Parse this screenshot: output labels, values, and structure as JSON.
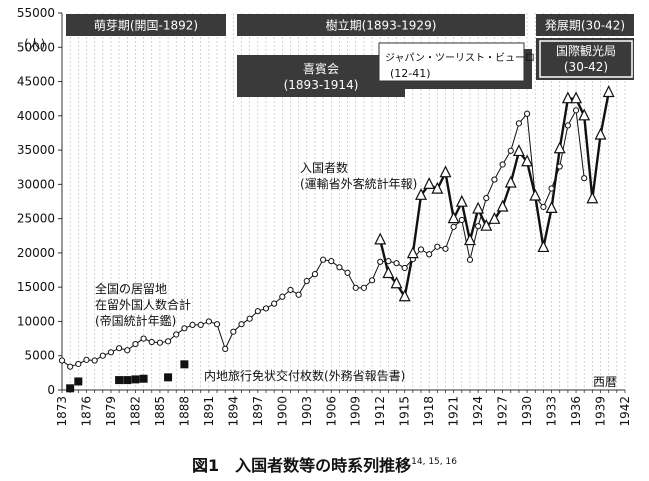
{
  "chart_data": {
    "type": "line",
    "title": "",
    "ylim": [
      0,
      55000
    ],
    "yticks": [
      0,
      5000,
      10000,
      15000,
      20000,
      25000,
      30000,
      35000,
      40000,
      45000,
      50000,
      55000
    ],
    "y_unit": "(人)",
    "xlim": [
      1873,
      1942
    ],
    "xtick_values": [
      1873,
      1876,
      1879,
      1882,
      1885,
      1888,
      1891,
      1894,
      1897,
      1900,
      1903,
      1906,
      1909,
      1912,
      1915,
      1918,
      1921,
      1924,
      1927,
      1930,
      1933,
      1936,
      1939,
      1942
    ],
    "xlabel": "西暦",
    "grid": "vertical dashed",
    "periods": [
      {
        "label": "萌芽期(開国-1892)"
      },
      {
        "label": "樹立期(1893-1929)"
      },
      {
        "label": "発展期(30-42)"
      },
      {
        "label": "喜賓会",
        "sub": "(1893-1914)"
      },
      {
        "label": "ジャパン・ツーリスト・ビューロー",
        "sub": "(12-41)"
      },
      {
        "label": "国際観光局",
        "sub": "(30-42)"
      }
    ],
    "series": [
      {
        "name": "全国の居留地 在留外国人数合計 (帝国統計年鑑)",
        "label_lines": [
          "全国の居留地",
          "在留外国人数合計",
          "(帝国統計年鑑)"
        ],
        "marker": "circle",
        "x": [
          1873,
          1874,
          1875,
          1876,
          1877,
          1878,
          1879,
          1880,
          1881,
          1882,
          1883,
          1884,
          1885,
          1886,
          1887,
          1888,
          1889,
          1890,
          1891,
          1892,
          1893,
          1894,
          1895,
          1896,
          1897,
          1898,
          1899,
          1900,
          1901,
          1902,
          1903,
          1904,
          1905,
          1906,
          1907,
          1908,
          1909,
          1910,
          1911,
          1912,
          1913,
          1914,
          1915,
          1916,
          1917,
          1918,
          1919,
          1920,
          1921,
          1922,
          1923,
          1924,
          1925,
          1926,
          1927,
          1928,
          1929,
          1930,
          1931,
          1932,
          1933,
          1934,
          1935,
          1936,
          1937
        ],
        "y": [
          4300,
          3400,
          3800,
          4400,
          4300,
          5000,
          5500,
          6100,
          5800,
          6700,
          7500,
          7000,
          6900,
          7100,
          8100,
          9000,
          9500,
          9500,
          10000,
          9600,
          6000,
          8500,
          9600,
          10400,
          11500,
          11900,
          12600,
          13600,
          14600,
          13900,
          15900,
          16900,
          19000,
          18800,
          17900,
          17100,
          14900,
          14900,
          16000,
          18700,
          18800,
          18500,
          17800,
          19100,
          20500,
          19800,
          20900,
          20600,
          23800,
          24800,
          19000,
          23900,
          28000,
          30700,
          32900,
          34900,
          38900,
          40300,
          28200,
          26700,
          29400,
          32600,
          38600,
          40800,
          30900
        ]
      },
      {
        "name": "入国者数 (運輸省外客統計年報)",
        "label_lines": [
          "入国者数",
          "(運輸省外客統計年報)"
        ],
        "marker": "triangle",
        "x": [
          1912,
          1913,
          1914,
          1915,
          1916,
          1917,
          1918,
          1919,
          1920,
          1921,
          1922,
          1923,
          1924,
          1925,
          1926,
          1927,
          1928,
          1929,
          1930,
          1931,
          1932,
          1933,
          1934,
          1935,
          1936,
          1937,
          1938,
          1939,
          1940
        ],
        "y": [
          21900,
          17000,
          15500,
          13600,
          19900,
          28400,
          30000,
          29300,
          31700,
          25000,
          27400,
          21800,
          26400,
          23900,
          24900,
          26700,
          30200,
          34800,
          33300,
          28300,
          20800,
          26500,
          35200,
          42500,
          42500,
          40000,
          27900,
          37200,
          43400
        ]
      },
      {
        "name": "内地旅行免状交付枚数(外務省報告書)",
        "label_lines": [
          "内地旅行免状交付枚数(外務省報告書)"
        ],
        "marker": "square",
        "x": [
          1874,
          1875,
          1880,
          1881,
          1882,
          1883,
          1886,
          1888
        ],
        "y": [
          100,
          1100,
          1300,
          1300,
          1400,
          1500,
          1700,
          3600
        ]
      }
    ]
  },
  "caption": {
    "text": "図1　入国者数等の時系列推移",
    "refs": "14, 15, 16"
  }
}
